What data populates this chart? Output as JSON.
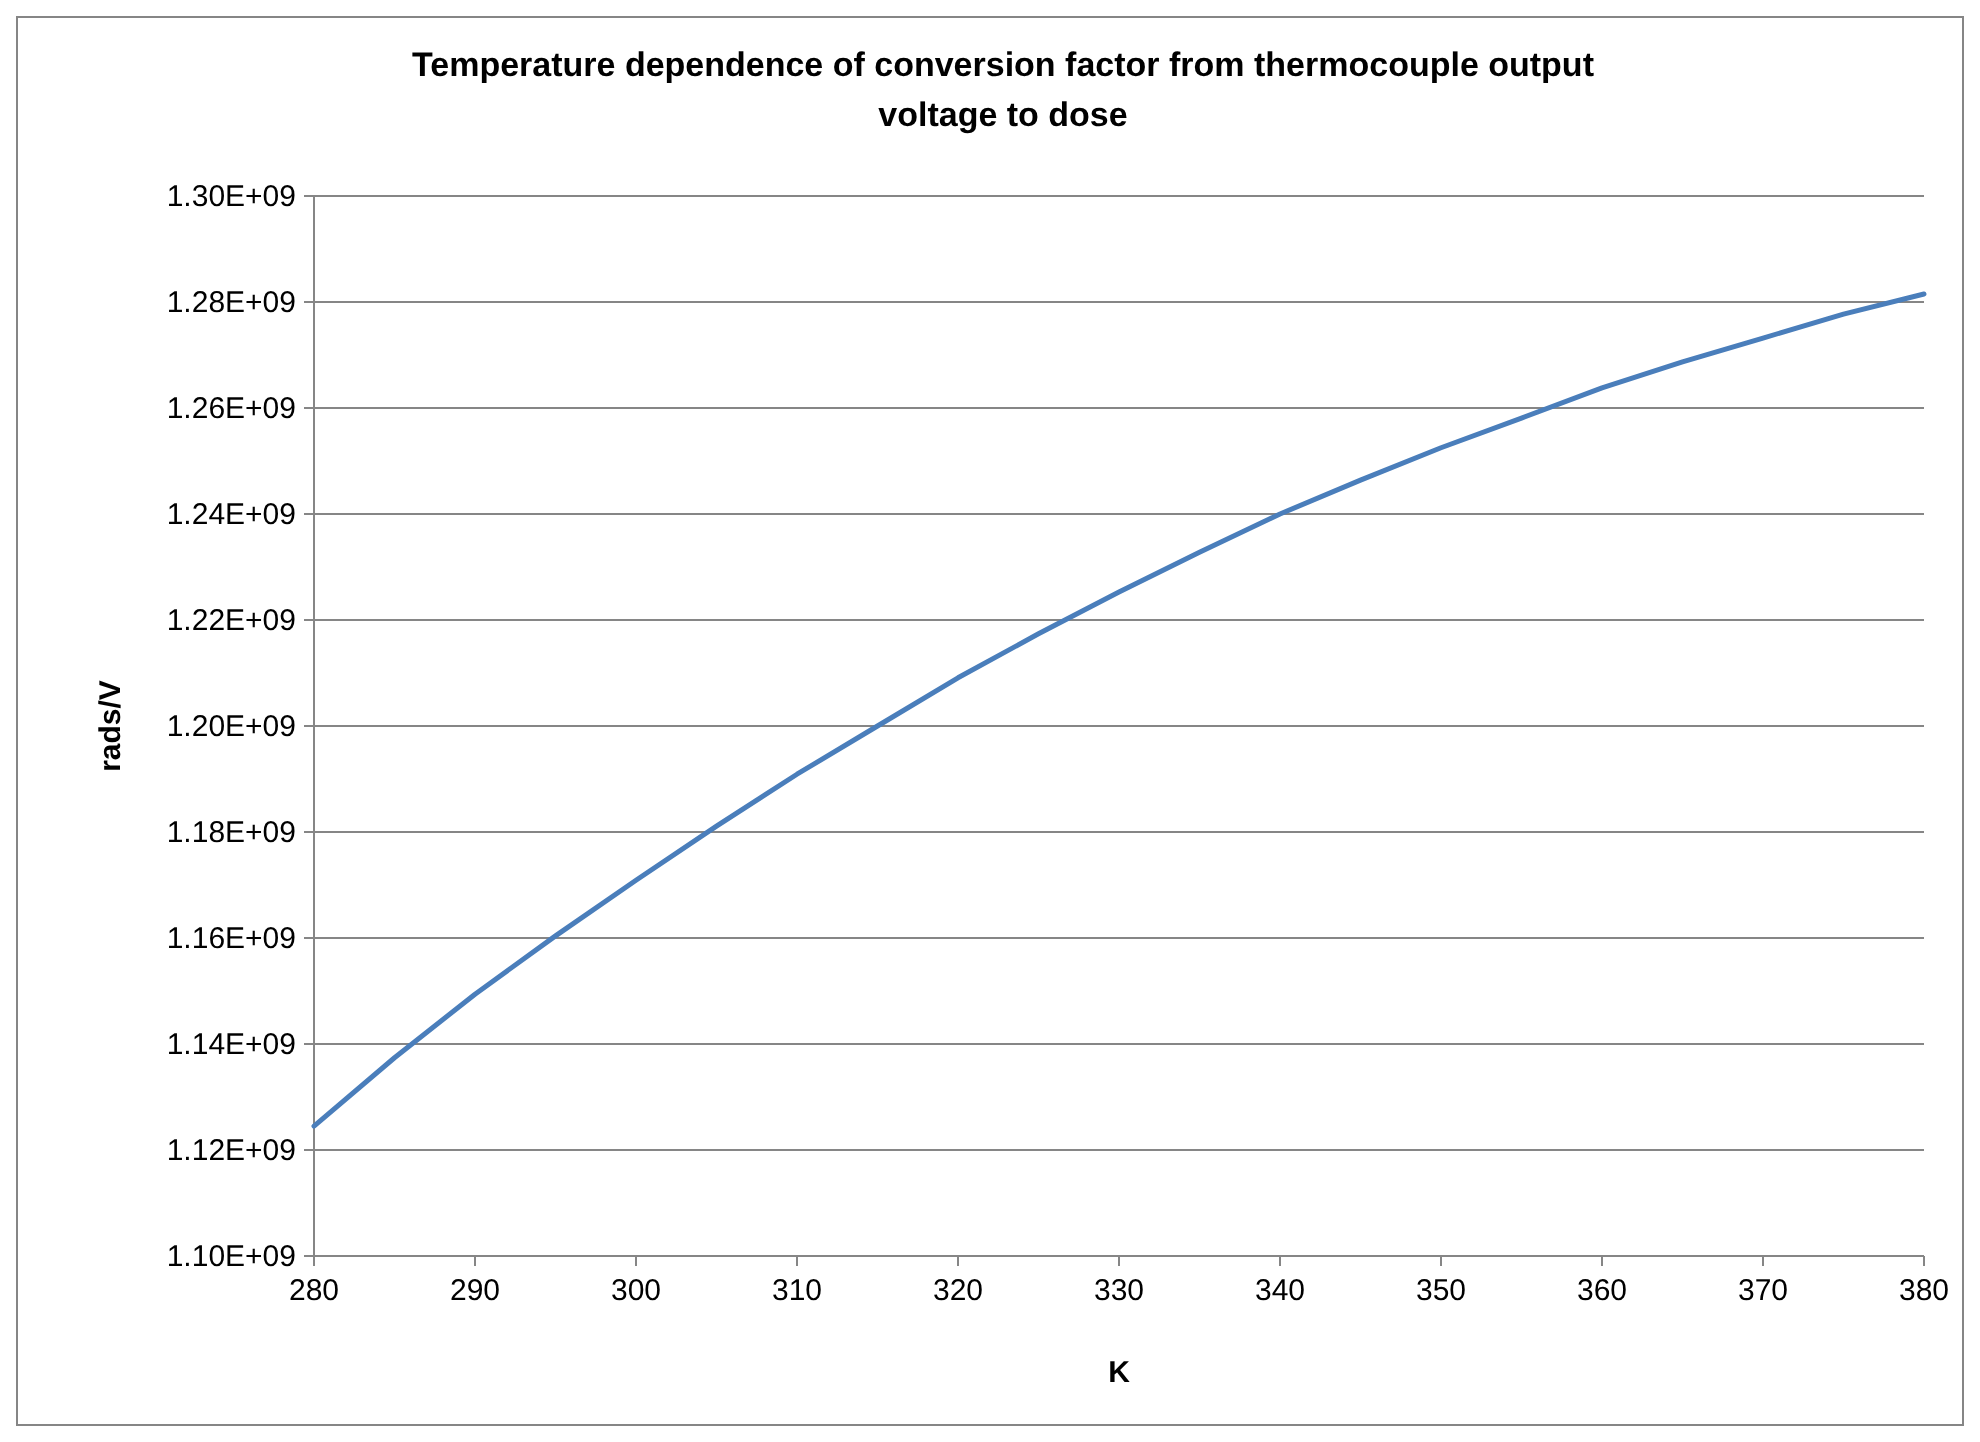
{
  "chart_data": {
    "type": "line",
    "title": "Temperature dependence of conversion factor from thermocouple output voltage to dose",
    "xlabel": "K",
    "ylabel": "rads/V",
    "x": [
      280,
      285,
      290,
      295,
      300,
      305,
      310,
      315,
      320,
      325,
      330,
      335,
      340,
      345,
      350,
      355,
      360,
      365,
      370,
      375,
      380
    ],
    "series": [
      {
        "color": "#4a7ebb",
        "values": [
          1124500000,
          1137400000,
          1149400000,
          1160400000,
          1170900000,
          1181100000,
          1190900000,
          1200000000,
          1209100000,
          1217400000,
          1225300000,
          1232800000,
          1240000000,
          1246400000,
          1252500000,
          1258100000,
          1263800000,
          1268700000,
          1273200000,
          1277700000,
          1281500000
        ]
      }
    ],
    "xlim": [
      280,
      380
    ],
    "xticks": [
      280,
      290,
      300,
      310,
      320,
      330,
      340,
      350,
      360,
      370,
      380
    ],
    "ylim": [
      1100000000,
      1300000000
    ],
    "yticks": [
      {
        "value": 1100000000,
        "label": "1.10E+09"
      },
      {
        "value": 1120000000,
        "label": "1.12E+09"
      },
      {
        "value": 1140000000,
        "label": "1.14E+09"
      },
      {
        "value": 1160000000,
        "label": "1.16E+09"
      },
      {
        "value": 1180000000,
        "label": "1.18E+09"
      },
      {
        "value": 1200000000,
        "label": "1.20E+09"
      },
      {
        "value": 1220000000,
        "label": "1.22E+09"
      },
      {
        "value": 1240000000,
        "label": "1.24E+09"
      },
      {
        "value": 1260000000,
        "label": "1.26E+09"
      },
      {
        "value": 1280000000,
        "label": "1.28E+09"
      },
      {
        "value": 1300000000,
        "label": "1.30E+09"
      }
    ],
    "grid": "y",
    "marker": "none",
    "line_style": "solid"
  }
}
